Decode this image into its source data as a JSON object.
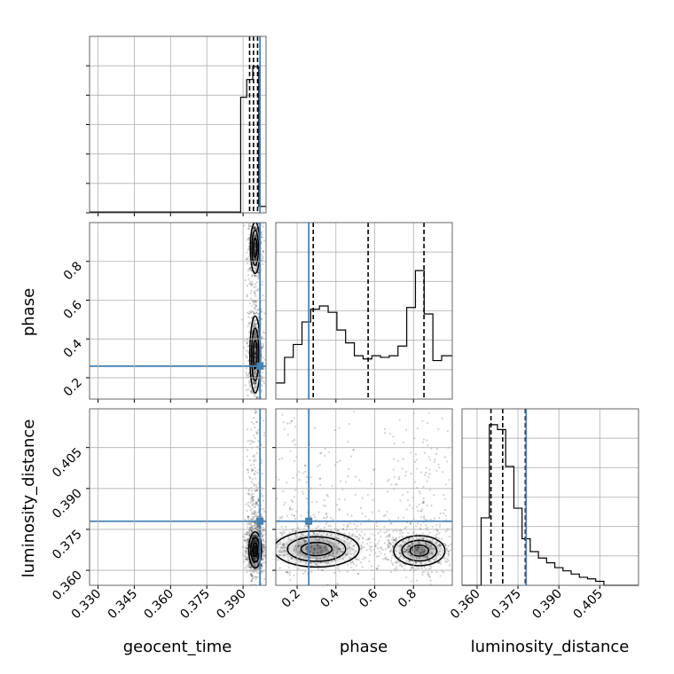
{
  "chart_data": {
    "type": "corner",
    "parameters": [
      "geocent_time",
      "phase",
      "luminosity_distance"
    ],
    "axis_labels": {
      "geocent_time": "geocent_time",
      "phase": "phase",
      "luminosity_distance": "luminosity_distance"
    },
    "truths": {
      "geocent_time": 0.397,
      "phase": 0.26,
      "luminosity_distance": 0.378
    },
    "truth_color": "#4682b4",
    "grid": true,
    "ranges": {
      "geocent_time": [
        0.3265,
        0.3995
      ],
      "phase": [
        0.09,
        1.0
      ],
      "luminosity_distance": [
        0.3545,
        0.4192
      ]
    },
    "ticks": {
      "geocent_time": [
        "0.330",
        "0.345",
        "0.360",
        "0.375",
        "0.390"
      ],
      "phase": [
        "0.2",
        "0.4",
        "0.6",
        "0.8"
      ],
      "luminosity_distance": [
        "0.360",
        "0.375",
        "0.390",
        "0.405"
      ]
    },
    "histograms": {
      "geocent_time": {
        "bin_edges": [
          0.3265,
          0.389,
          0.3915,
          0.394,
          0.3965,
          0.3995
        ],
        "counts": [
          0.005,
          0.72,
          0.83,
          0.91,
          0.04
        ],
        "quantiles": [
          0.3927,
          0.3943,
          0.396
        ]
      },
      "phase": {
        "bin_edges": [
          0.09,
          0.135,
          0.18,
          0.225,
          0.27,
          0.315,
          0.36,
          0.405,
          0.45,
          0.495,
          0.54,
          0.585,
          0.63,
          0.675,
          0.72,
          0.765,
          0.81,
          0.855,
          0.9,
          0.945,
          1.0
        ],
        "counts": [
          0.1,
          0.26,
          0.34,
          0.48,
          0.56,
          0.58,
          0.54,
          0.43,
          0.35,
          0.27,
          0.25,
          0.27,
          0.26,
          0.27,
          0.33,
          0.57,
          0.8,
          0.53,
          0.24,
          0.27
        ],
        "quantiles": [
          0.283,
          0.566,
          0.854
        ]
      },
      "luminosity_distance": {
        "bin_edges": [
          0.3545,
          0.3615,
          0.3645,
          0.3675,
          0.3705,
          0.3735,
          0.3765,
          0.3795,
          0.3825,
          0.3855,
          0.3885,
          0.3915,
          0.3945,
          0.3975,
          0.4005,
          0.4035,
          0.4065,
          0.4192
        ],
        "counts": [
          0.0,
          0.42,
          1.0,
          0.97,
          0.74,
          0.48,
          0.29,
          0.21,
          0.17,
          0.14,
          0.11,
          0.09,
          0.07,
          0.05,
          0.04,
          0.025,
          0.0
        ],
        "quantiles": [
          0.3651,
          0.3694,
          0.3777
        ]
      }
    },
    "histogram_ymax": 1.0,
    "pairs": [
      {
        "x": "geocent_time",
        "y": "phase",
        "modes": [
          {
            "cx": 0.395,
            "cy": 0.87,
            "sx": 0.0009,
            "sy": 0.06,
            "w": 0.45
          },
          {
            "cx": 0.395,
            "cy": 0.32,
            "sx": 0.001,
            "sy": 0.09,
            "w": 0.55
          }
        ]
      },
      {
        "x": "geocent_time",
        "y": "luminosity_distance",
        "modes": [
          {
            "cx": 0.395,
            "cy": 0.3675,
            "sx": 0.0012,
            "sy": 0.003,
            "w": 1.0
          }
        ]
      },
      {
        "x": "phase",
        "y": "luminosity_distance",
        "modes": [
          {
            "cx": 0.3,
            "cy": 0.3678,
            "sx": 0.1,
            "sy": 0.003,
            "w": 0.5
          },
          {
            "cx": 0.83,
            "cy": 0.3672,
            "sx": 0.06,
            "sy": 0.0025,
            "w": 0.5
          }
        ]
      }
    ]
  }
}
